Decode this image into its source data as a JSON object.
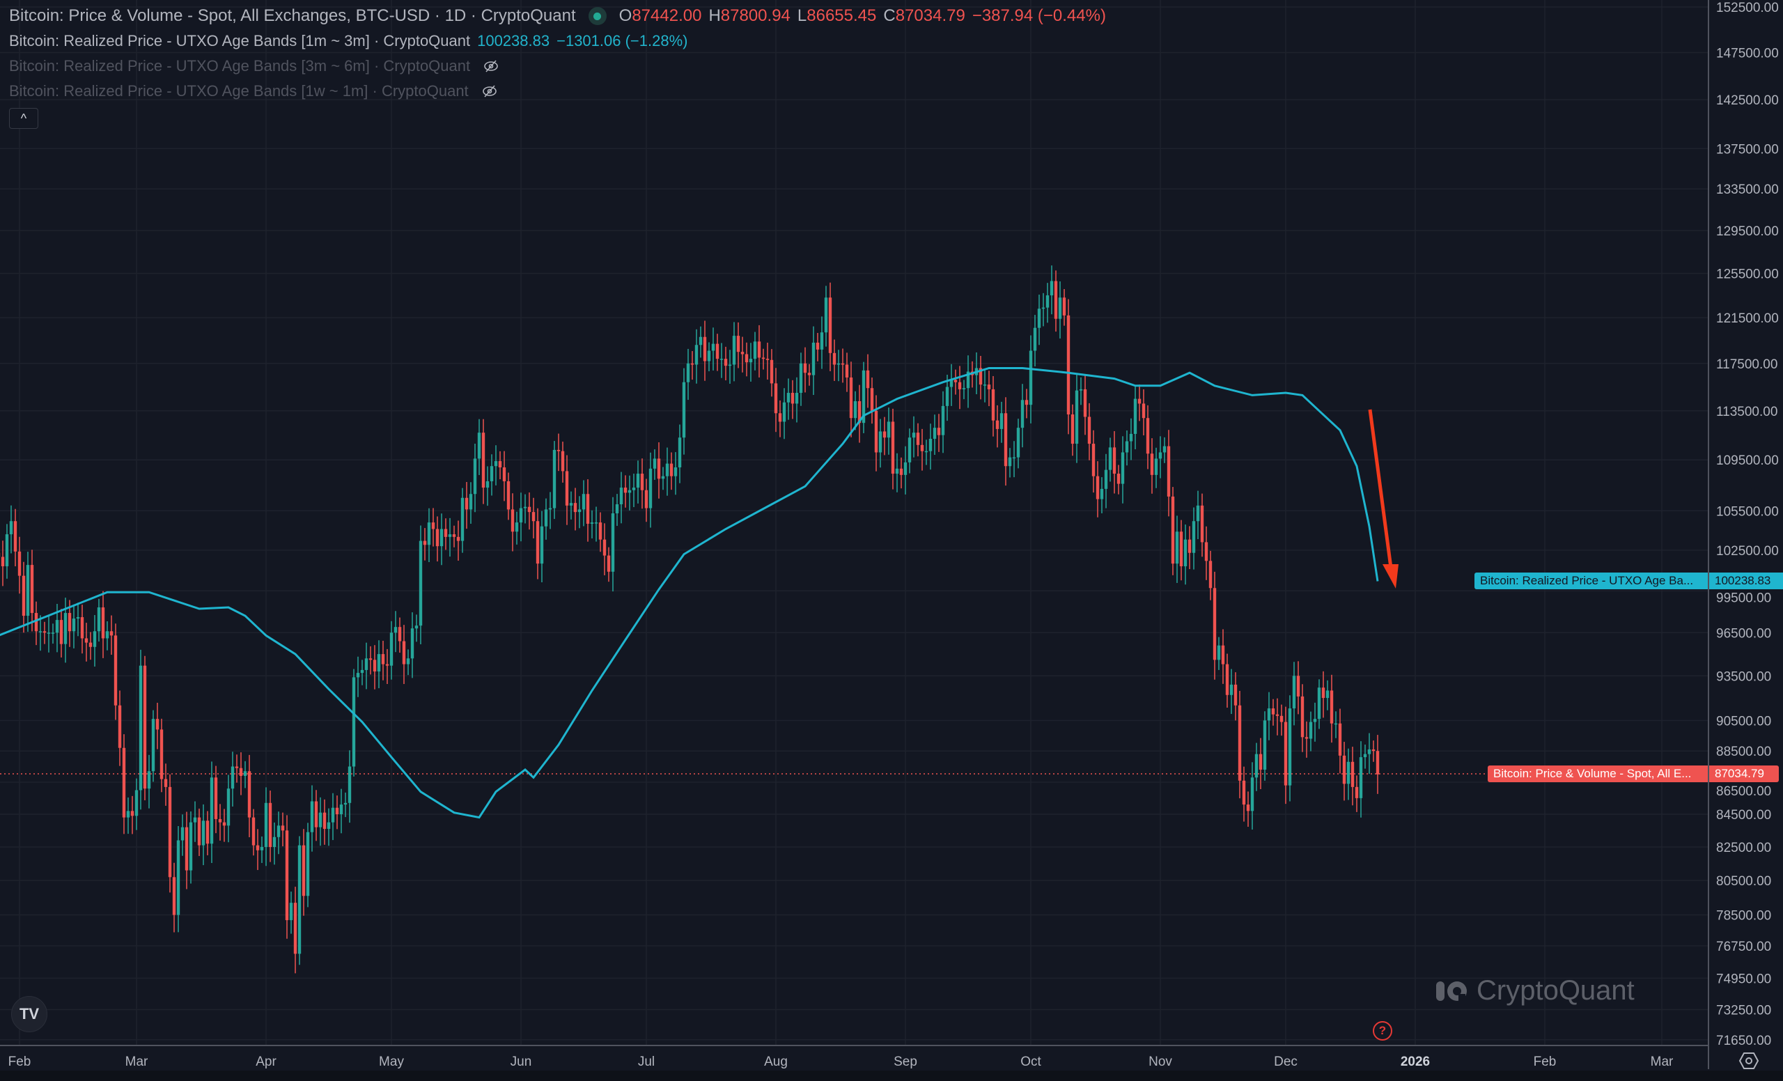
{
  "legend": {
    "main_title": "Bitcoin: Price & Volume - Spot, All Exchanges, BTC-USD · 1D · CryptoQuant",
    "o_label": "O",
    "o_value": "87442.00",
    "h_label": "H",
    "h_value": "87800.94",
    "l_label": "L",
    "l_value": "86655.45",
    "c_label": "C",
    "c_value": "87034.79",
    "change": "−387.94 (−0.44%)",
    "series2_title": "Bitcoin: Realized Price - UTXO Age Bands [1m ~ 3m] · CryptoQuant",
    "series2_value": "100238.83",
    "series2_change": "−1301.06 (−1.28%)",
    "series3_title": "Bitcoin: Realized Price - UTXO Age Bands [3m ~ 6m] · CryptoQuant",
    "series4_title": "Bitcoin: Realized Price - UTXO Age Bands [1w ~ 1m] · CryptoQuant",
    "collapse_icon": "^"
  },
  "price_tags": {
    "realized_label": "Bitcoin: Realized Price - UTXO Age Ba...",
    "realized_value": "100238.83",
    "price_label": "Bitcoin: Price & Volume - Spot, All E...",
    "price_value": "87034.79"
  },
  "watermark": "CryptoQuant",
  "tv_logo": "TV",
  "help_icon": "?",
  "colors": {
    "up": "#26a69a",
    "down": "#ef5350",
    "realized": "#1fb5cf",
    "arrow": "#f23a1c",
    "grid": "#1e222d"
  },
  "chart_data": {
    "type": "candlestick+line",
    "y_scale": "log",
    "ylim": [
      71650,
      152500
    ],
    "y_ticks": [
      "152500.00",
      "147500.00",
      "142500.00",
      "137500.00",
      "133500.00",
      "129500.00",
      "125500.00",
      "121500.00",
      "117500.00",
      "113500.00",
      "109500.00",
      "105500.00",
      "102500.00",
      "99500.00",
      "96500.00",
      "93500.00",
      "90500.00",
      "88500.00",
      "86500.00",
      "84500.00",
      "82500.00",
      "80500.00",
      "78500.00",
      "76750.00",
      "74950.00",
      "73250.00",
      "71650.00"
    ],
    "x_ticks": [
      {
        "label": "Feb",
        "date": "2025-02-01"
      },
      {
        "label": "Mar",
        "date": "2025-03-01"
      },
      {
        "label": "Apr",
        "date": "2025-04-01"
      },
      {
        "label": "May",
        "date": "2025-05-01"
      },
      {
        "label": "Jun",
        "date": "2025-06-01"
      },
      {
        "label": "Jul",
        "date": "2025-07-01"
      },
      {
        "label": "Aug",
        "date": "2025-08-01"
      },
      {
        "label": "Sep",
        "date": "2025-09-01"
      },
      {
        "label": "Oct",
        "date": "2025-10-01"
      },
      {
        "label": "Nov",
        "date": "2025-11-01"
      },
      {
        "label": "Dec",
        "date": "2025-12-01"
      },
      {
        "label": "2026",
        "date": "2026-01-01"
      },
      {
        "label": "Feb",
        "date": "2026-02-01"
      },
      {
        "label": "Mar",
        "date": "2026-03-01"
      }
    ],
    "price_series": {
      "name": "Bitcoin: Price & Volume - Spot, All Exchanges, BTC-USD",
      "start_date": "2025-01-27",
      "unit": "USD thousands (daily close, approx.)",
      "closes": [
        102.0,
        101.3,
        103.7,
        104.7,
        102.4,
        100.6,
        97.7,
        101.4,
        97.9,
        96.6,
        96.6,
        96.5,
        96.5,
        96.5,
        97.4,
        95.7,
        97.9,
        96.6,
        97.5,
        97.6,
        96.1,
        95.8,
        95.5,
        96.6,
        98.3,
        96.1,
        96.6,
        96.3,
        91.5,
        88.7,
        84.3,
        84.7,
        84.4,
        86.0,
        94.2,
        86.1,
        87.2,
        90.6,
        89.9,
        86.7,
        86.2,
        80.7,
        78.5,
        82.9,
        83.7,
        81.1,
        84.0,
        84.3,
        82.6,
        84.1,
        82.7,
        86.8,
        84.2,
        84.0,
        83.8,
        86.1,
        87.5,
        87.4,
        86.9,
        87.2,
        84.3,
        82.6,
        82.3,
        82.5,
        85.2,
        82.5,
        83.1,
        83.8,
        83.5,
        78.2,
        79.2,
        76.3,
        82.6,
        79.6,
        83.4,
        85.3,
        83.7,
        84.6,
        83.6,
        84.0,
        84.9,
        84.5,
        85.1,
        85.2,
        87.5,
        93.4,
        93.7,
        93.9,
        94.7,
        94.6,
        93.8,
        95.0,
        94.3,
        94.2,
        96.5,
        96.9,
        95.9,
        94.3,
        94.7,
        96.8,
        97.0,
        103.2,
        102.9,
        104.6,
        104.1,
        102.8,
        104.1,
        103.5,
        103.7,
        103.5,
        103.2,
        106.5,
        105.6,
        106.8,
        109.6,
        111.7,
        107.3,
        107.8,
        109.0,
        109.4,
        108.9,
        107.8,
        105.6,
        103.9,
        104.6,
        105.7,
        105.8,
        105.4,
        104.7,
        101.5,
        104.3,
        105.6,
        105.7,
        110.3,
        110.2,
        108.6,
        105.9,
        106.1,
        105.4,
        105.6,
        106.8,
        104.5,
        104.6,
        104.6,
        103.3,
        102.1,
        100.9,
        105.3,
        106.0,
        107.3,
        106.9,
        107.1,
        107.3,
        108.4,
        107.1,
        105.7,
        108.8,
        109.6,
        108.0,
        108.2,
        109.2,
        108.2,
        108.9,
        111.3,
        115.9,
        117.5,
        117.4,
        119.1,
        119.8,
        117.7,
        118.6,
        119.2,
        117.9,
        117.9,
        117.3,
        117.4,
        119.9,
        118.5,
        118.3,
        117.6,
        117.9,
        119.4,
        118.0,
        117.9,
        117.8,
        115.8,
        113.3,
        112.6,
        114.2,
        115.0,
        114.1,
        115.0,
        117.5,
        116.7,
        116.5,
        119.3,
        118.7,
        120.2,
        123.3,
        118.4,
        117.4,
        117.5,
        117.4,
        116.3,
        112.9,
        114.3,
        112.5,
        116.9,
        115.4,
        113.5,
        110.1,
        111.8,
        111.3,
        112.6,
        108.4,
        108.8,
        108.3,
        109.3,
        111.3,
        111.7,
        110.7,
        110.2,
        110.2,
        111.2,
        112.1,
        111.5,
        113.9,
        115.5,
        116.1,
        115.9,
        115.3,
        115.4,
        116.8,
        116.5,
        117.1,
        115.7,
        115.7,
        115.3,
        112.7,
        112.0,
        113.3,
        109.0,
        109.7,
        109.7,
        112.1,
        114.4,
        114.0,
        118.6,
        120.6,
        122.3,
        122.4,
        123.5,
        124.8,
        121.4,
        123.3,
        121.7,
        113.2,
        110.8,
        115.2,
        115.3,
        113.0,
        110.8,
        108.2,
        106.4,
        107.2,
        108.7,
        110.5,
        108.4,
        107.6,
        110.1,
        111.0,
        111.6,
        114.5,
        114.1,
        112.9,
        110.0,
        108.3,
        109.6,
        110.1,
        110.6,
        106.6,
        101.5,
        103.9,
        101.3,
        103.3,
        102.3,
        104.7,
        105.9,
        103.1,
        101.7,
        99.7,
        94.6,
        95.6,
        94.3,
        92.2,
        92.9,
        91.5,
        86.6,
        85.1,
        84.7,
        86.8,
        88.3,
        87.3,
        90.5,
        91.3,
        90.9,
        90.8,
        90.4,
        86.3,
        91.3,
        93.5,
        92.1,
        89.4,
        89.3,
        90.4,
        90.6,
        92.7,
        92.0,
        92.5,
        90.3,
        90.3,
        88.2,
        86.4,
        87.8,
        86.2,
        85.5,
        88.1,
        88.3,
        88.6,
        88.5,
        87.0
      ]
    },
    "realized_series": {
      "name": "Bitcoin: Realized Price - UTXO Age Bands [1m ~ 3m]",
      "unit": "USD thousands (approx.)",
      "points": [
        [
          "2025-01-27",
          96.3
        ],
        [
          "2025-02-22",
          99.4
        ],
        [
          "2025-03-04",
          99.4
        ],
        [
          "2025-03-16",
          98.2
        ],
        [
          "2025-03-23",
          98.3
        ],
        [
          "2025-03-27",
          97.7
        ],
        [
          "2025-04-01",
          96.3
        ],
        [
          "2025-04-08",
          95.0
        ],
        [
          "2025-04-16",
          92.6
        ],
        [
          "2025-04-24",
          90.4
        ],
        [
          "2025-05-01",
          88.1
        ],
        [
          "2025-05-08",
          85.9
        ],
        [
          "2025-05-16",
          84.6
        ],
        [
          "2025-05-22",
          84.3
        ],
        [
          "2025-05-26",
          85.9
        ],
        [
          "2025-06-02",
          87.3
        ],
        [
          "2025-06-04",
          86.8
        ],
        [
          "2025-06-10",
          88.9
        ],
        [
          "2025-06-18",
          92.5
        ],
        [
          "2025-06-26",
          96.0
        ],
        [
          "2025-07-04",
          99.6
        ],
        [
          "2025-07-10",
          102.2
        ],
        [
          "2025-07-20",
          104.1
        ],
        [
          "2025-07-31",
          106.0
        ],
        [
          "2025-08-08",
          107.4
        ],
        [
          "2025-08-17",
          110.8
        ],
        [
          "2025-08-22",
          113.1
        ],
        [
          "2025-08-30",
          114.5
        ],
        [
          "2025-09-10",
          115.9
        ],
        [
          "2025-09-21",
          117.1
        ],
        [
          "2025-09-29",
          117.1
        ],
        [
          "2025-10-10",
          116.7
        ],
        [
          "2025-10-21",
          116.2
        ],
        [
          "2025-10-26",
          115.6
        ],
        [
          "2025-11-01",
          115.6
        ],
        [
          "2025-11-08",
          116.7
        ],
        [
          "2025-11-14",
          115.6
        ],
        [
          "2025-11-23",
          114.8
        ],
        [
          "2025-12-01",
          115.0
        ],
        [
          "2025-12-05",
          114.8
        ],
        [
          "2025-12-09",
          113.5
        ],
        [
          "2025-12-14",
          111.9
        ],
        [
          "2025-12-18",
          109.0
        ],
        [
          "2025-12-21",
          104.3
        ],
        [
          "2025-12-23",
          100.2
        ]
      ]
    },
    "last_price": 87034.79,
    "last_realized": 100238.83
  }
}
